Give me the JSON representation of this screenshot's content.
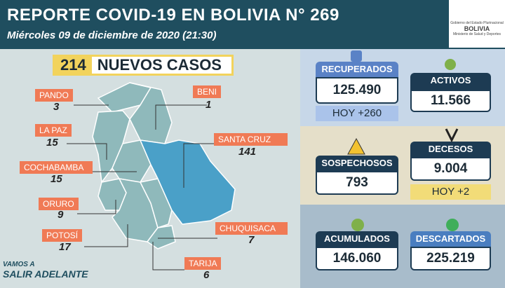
{
  "header": {
    "title": "REPORTE COVID-19 EN BOLIVIA N° 269",
    "subtitle": "Miércoles 09 de diciembre de 2020 (21:30)"
  },
  "logo": {
    "line1": "Gobierno del Estado Plurinacional",
    "line2": "BOLIVIA",
    "line3": "Ministerio de Salud y Deportes"
  },
  "new_cases": {
    "number": "214",
    "label": "NUEVOS CASOS"
  },
  "departments": [
    {
      "name": "PANDO",
      "value": "3"
    },
    {
      "name": "BENI",
      "value": "1"
    },
    {
      "name": "LA PAZ",
      "value": "15"
    },
    {
      "name": "SANTA CRUZ",
      "value": "141"
    },
    {
      "name": "COCHABAMBA",
      "value": "15"
    },
    {
      "name": "ORURO",
      "value": "9"
    },
    {
      "name": "POTOSÍ",
      "value": "17"
    },
    {
      "name": "CHUQUISACA",
      "value": "7"
    },
    {
      "name": "TARIJA",
      "value": "6"
    }
  ],
  "stats": {
    "recuperados": {
      "title": "RECUPERADOS",
      "value": "125.490",
      "today": "HOY +260"
    },
    "activos": {
      "title": "ACTIVOS",
      "value": "11.566"
    },
    "sospechosos": {
      "title": "SOSPECHOSOS",
      "value": "793"
    },
    "decesos": {
      "title": "DECESOS",
      "value": "9.004",
      "today": "HOY +2"
    },
    "acumulados": {
      "title": "ACUMULADOS",
      "value": "146.060"
    },
    "descartados": {
      "title": "DESCARTADOS",
      "value": "225.219"
    }
  },
  "footer": {
    "line1": "VAMOS A",
    "line2": "SALIR ADELANTE"
  }
}
